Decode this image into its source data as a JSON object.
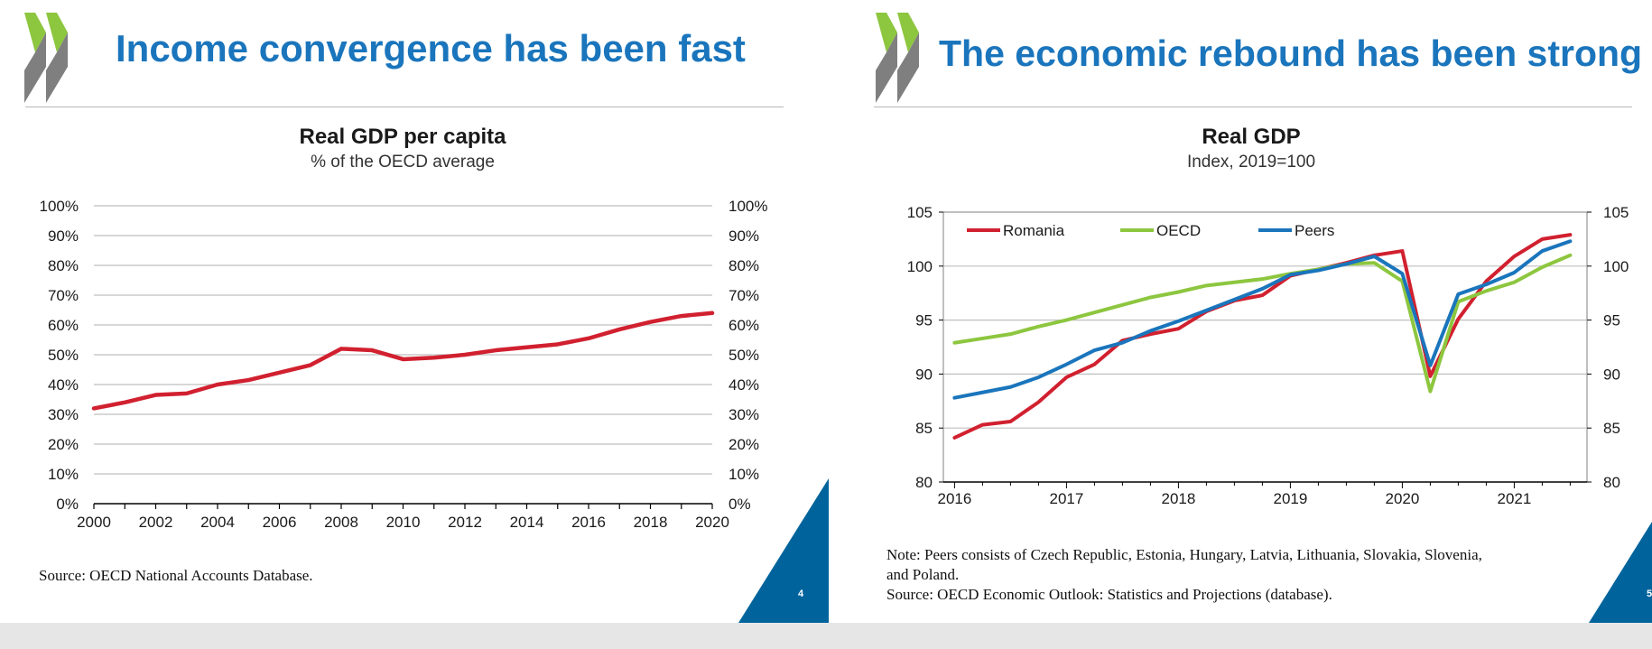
{
  "colors": {
    "brand_blue": "#1a75bc",
    "corner_blue": "#00639c",
    "logo_green": "#8dc63f",
    "logo_grey": "#7f7f7f"
  },
  "left_slide": {
    "title": "Income convergence has been fast",
    "chart_title": "Real GDP per capita",
    "chart_subtitle": "% of the OECD average",
    "source": "Source: OECD National Accounts Database.",
    "page_number": "4"
  },
  "right_slide": {
    "title": "The economic rebound has been strong",
    "chart_title": "Real GDP",
    "chart_subtitle": "Index, 2019=100",
    "note_line1": "Note: Peers consists of Czech Republic, Estonia, Hungary, Latvia, Lithuania, Slovakia, Slovenia,",
    "note_line2": "and Poland.",
    "source": "Source: OECD Economic Outlook: Statistics and Projections (database).",
    "page_number": "5"
  },
  "chart_data": [
    {
      "type": "line",
      "title": "Real GDP per capita",
      "subtitle": "% of the OECD average",
      "x": [
        2000,
        2001,
        2002,
        2003,
        2004,
        2005,
        2006,
        2007,
        2008,
        2009,
        2010,
        2011,
        2012,
        2013,
        2014,
        2015,
        2016,
        2017,
        2018,
        2019,
        2020
      ],
      "series": [
        {
          "name": "",
          "color": "#d1202f",
          "values": [
            32,
            34,
            36.5,
            37,
            40,
            41.5,
            44,
            46.5,
            52,
            51.5,
            48.5,
            49,
            50,
            51.5,
            52.5,
            53.5,
            55.5,
            58.5,
            61,
            63,
            64
          ]
        }
      ],
      "xlim": [
        2000,
        2020
      ],
      "ylim": [
        0,
        100
      ],
      "x_tick_labels": [
        "2000",
        "2002",
        "2004",
        "2006",
        "2008",
        "2010",
        "2012",
        "2014",
        "2016",
        "2018",
        "2020"
      ],
      "y_tick_labels": [
        "0%",
        "10%",
        "20%",
        "30%",
        "40%",
        "50%",
        "60%",
        "70%",
        "80%",
        "90%",
        "100%"
      ],
      "grid": true,
      "right_axis_mirrors_left": true
    },
    {
      "type": "line",
      "title": "Real GDP",
      "subtitle": "Index, 2019=100",
      "x": [
        2016.0,
        2016.25,
        2016.5,
        2016.75,
        2017.0,
        2017.25,
        2017.5,
        2017.75,
        2018.0,
        2018.25,
        2018.5,
        2018.75,
        2019.0,
        2019.25,
        2019.5,
        2019.75,
        2020.0,
        2020.25,
        2020.5,
        2020.75,
        2021.0,
        2021.25,
        2021.5
      ],
      "series": [
        {
          "name": "Romania",
          "color": "#d1202f",
          "values": [
            84.1,
            85.3,
            85.6,
            87.4,
            89.7,
            90.9,
            93.1,
            93.7,
            94.2,
            95.8,
            96.8,
            97.3,
            99.1,
            99.7,
            100.3,
            101.0,
            101.4,
            89.8,
            95.1,
            98.6,
            100.9,
            102.5,
            102.9
          ]
        },
        {
          "name": "OECD",
          "color": "#8dc63f",
          "values": [
            92.9,
            93.3,
            93.7,
            94.4,
            95.0,
            95.7,
            96.4,
            97.1,
            97.6,
            98.2,
            98.5,
            98.8,
            99.3,
            99.7,
            100.2,
            100.3,
            98.6,
            88.4,
            96.7,
            97.7,
            98.5,
            99.9,
            101.0
          ]
        },
        {
          "name": "Peers",
          "color": "#1a75bc",
          "values": [
            87.8,
            88.3,
            88.8,
            89.7,
            90.9,
            92.2,
            92.9,
            94.0,
            94.9,
            95.9,
            96.9,
            97.9,
            99.2,
            99.6,
            100.2,
            100.9,
            99.3,
            90.8,
            97.4,
            98.3,
            99.4,
            101.4,
            102.3
          ]
        }
      ],
      "xlim": [
        2015.9,
        2021.65
      ],
      "ylim": [
        80,
        105
      ],
      "x_tick_labels": [
        "2016",
        "2017",
        "2018",
        "2019",
        "2020",
        "2021"
      ],
      "y_tick_labels": [
        "80",
        "85",
        "90",
        "95",
        "100",
        "105"
      ],
      "legend_position": "top-left",
      "grid": true,
      "right_axis_mirrors_left": true
    }
  ]
}
